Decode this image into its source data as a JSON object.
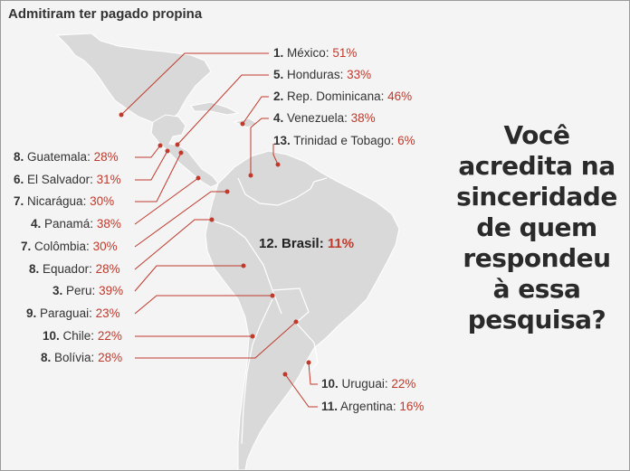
{
  "title": "Admitiram ter pagado propina",
  "labels": {
    "mexico": {
      "rank": "1.",
      "name": "México:",
      "pct": "51%"
    },
    "honduras": {
      "rank": "5.",
      "name": "Honduras:",
      "pct": "33%"
    },
    "repdom": {
      "rank": "2.",
      "name": "Rep. Dominicana:",
      "pct": "46%"
    },
    "venezuela": {
      "rank": "4.",
      "name": "Venezuela:",
      "pct": "38%"
    },
    "trinidad": {
      "rank": "13.",
      "name": "Trinidad e Tobago:",
      "pct": "6%"
    },
    "guatemala": {
      "rank": "8.",
      "name": "Guatemala:",
      "pct": "28%"
    },
    "elsalvador": {
      "rank": "6.",
      "name": "El Salvador:",
      "pct": "31%"
    },
    "nicaragua": {
      "rank": "7.",
      "name": "Nicarágua:",
      "pct": "30%"
    },
    "panama": {
      "rank": "4.",
      "name": "Panamá:",
      "pct": "38%"
    },
    "colombia": {
      "rank": "7.",
      "name": "Colômbia:",
      "pct": "30%"
    },
    "equador": {
      "rank": "8.",
      "name": "Equador:",
      "pct": "28%"
    },
    "peru": {
      "rank": "3.",
      "name": "Peru:",
      "pct": "39%"
    },
    "paraguai": {
      "rank": "9.",
      "name": "Paraguai:",
      "pct": "23%"
    },
    "chile": {
      "rank": "10.",
      "name": "Chile:",
      "pct": "22%"
    },
    "bolivia": {
      "rank": "8.",
      "name": "Bolívia:",
      "pct": "28%"
    },
    "uruguai": {
      "rank": "10.",
      "name": "Uruguai:",
      "pct": "22%"
    },
    "argentina": {
      "rank": "11.",
      "name": "Argentina:",
      "pct": "16%"
    },
    "brasil": {
      "rank": "12.",
      "name": "Brasil:",
      "pct": "11%"
    }
  },
  "question": [
    "Você",
    "acredita na",
    "sinceridade",
    "de quem",
    "respondeu",
    "à essa",
    "pesquisa?"
  ],
  "colors": {
    "land": "#d9d9d9",
    "land_stroke": "#ffffff",
    "leader": "#c0392b",
    "pct": "#c0392b"
  }
}
